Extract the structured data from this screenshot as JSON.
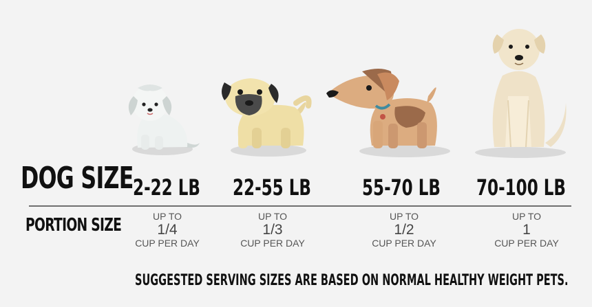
{
  "row_labels": {
    "dog_size": "DOG SIZE",
    "portion_size": "PORTION SIZE"
  },
  "sizes": [
    {
      "weight": "2-22 LB",
      "upto": "UP TO",
      "amount": "1/4",
      "unit": "CUP PER DAY"
    },
    {
      "weight": "22-55 LB",
      "upto": "UP TO",
      "amount": "1/3",
      "unit": "CUP PER DAY"
    },
    {
      "weight": "55-70 LB",
      "upto": "UP TO",
      "amount": "1/2",
      "unit": "CUP PER DAY"
    },
    {
      "weight": "70-100 LB",
      "upto": "UP TO",
      "amount": "1",
      "unit": "CUP PER DAY"
    }
  ],
  "footnote": "SUGGESTED SERVING SIZES ARE BASED ON NORMAL HEALTHY WEIGHT PETS.",
  "colors": {
    "background": "#f3f3f3",
    "text": "#111111",
    "muted_text": "#555555",
    "divider": "#6e6e6e",
    "shadow": "#d9d9d9"
  }
}
